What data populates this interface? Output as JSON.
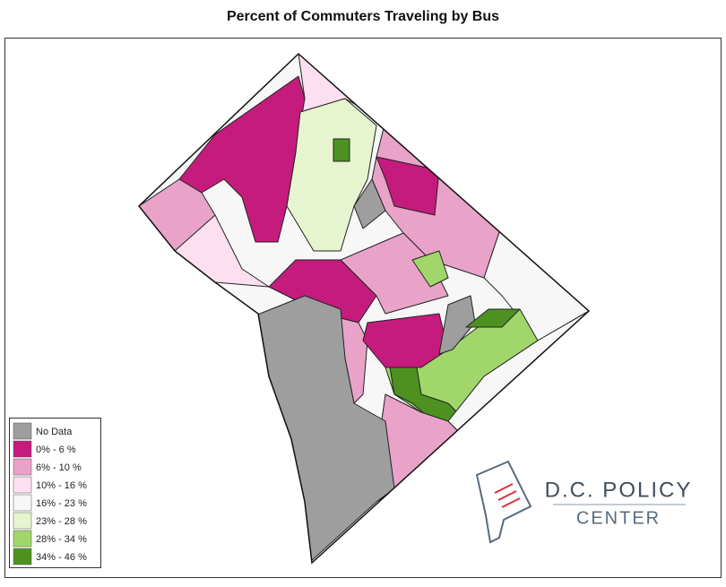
{
  "title": "Percent of Commuters Traveling by Bus",
  "legend": {
    "items": [
      {
        "label": "No Data",
        "color": "#9e9e9e"
      },
      {
        "label": "0% - 6 %",
        "color": "#c51b7d"
      },
      {
        "label": "6% - 10 %",
        "color": "#e9a3c9"
      },
      {
        "label": "10% - 16 %",
        "color": "#fde0ef"
      },
      {
        "label": "16% - 23 %",
        "color": "#f7f7f7"
      },
      {
        "label": "23% - 28 %",
        "color": "#e6f5d0"
      },
      {
        "label": "28% - 34 %",
        "color": "#a1d76a"
      },
      {
        "label": "34% - 46 %",
        "color": "#4d9221"
      }
    ]
  },
  "logo": {
    "line1": "D.C. POLICY",
    "line2": "CENTER"
  }
}
